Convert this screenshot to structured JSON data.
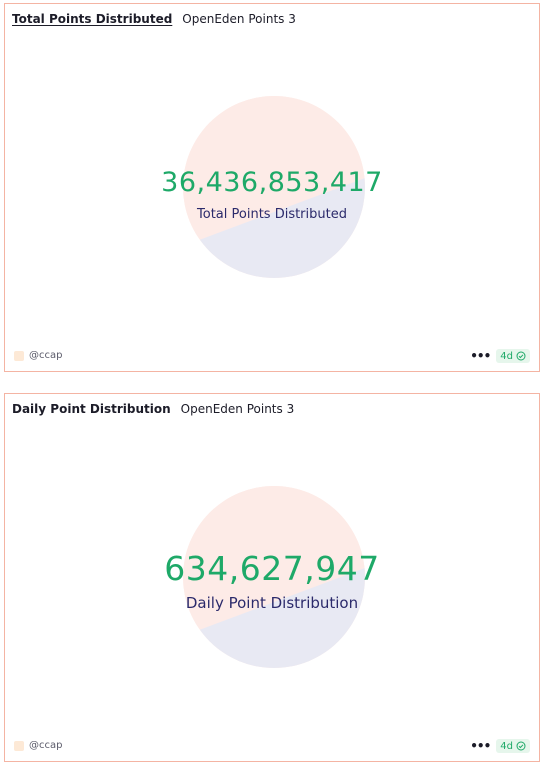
{
  "cards": [
    {
      "title": "Total Points Distributed",
      "subtitle": "OpenEden Points 3",
      "metric_value": "36,436,853,417",
      "metric_label": "Total Points Distributed",
      "author": "@ccap",
      "age": "4d"
    },
    {
      "title": "Daily Point Distribution",
      "subtitle": "OpenEden Points 3",
      "metric_value": "634,627,947",
      "metric_label": "Daily Point Distribution",
      "author": "@ccap",
      "age": "4d"
    }
  ],
  "colors": {
    "card_border": "#f4b4a3",
    "metric_value": "#1ea968",
    "metric_label": "#2b2a6b",
    "pie_slice_a": "#fdebe7",
    "pie_slice_b": "#e8e9f3",
    "badge_bg": "#e6f6ec"
  },
  "icons": {
    "more": "more-icon",
    "verified": "check-circle-icon"
  }
}
